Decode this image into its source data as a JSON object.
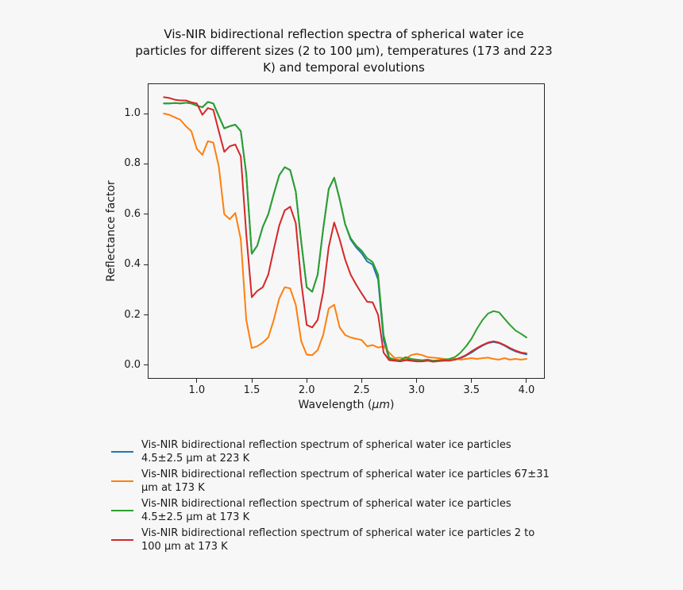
{
  "title": {
    "lines": [
      "Vis-NIR bidirectional reflection spectra of spherical water ice",
      "particles for different sizes (2 to 100 μm), temperatures (173 and 223",
      "K) and temporal evolutions"
    ],
    "full": "Vis-NIR bidirectional reflection spectra of spherical water ice particles for different sizes (2 to 100 μm), temperatures (173 and 223 K) and temporal evolutions"
  },
  "chart_data": {
    "type": "line",
    "title": "Vis-NIR bidirectional reflection spectra of spherical water ice particles for different sizes (2 to 100 μm), temperatures (173 and 223 K) and temporal evolutions",
    "xlabel": "Wavelength (μm)",
    "xlabel_parts": {
      "prefix": "Wavelength (",
      "unit": "μm",
      "suffix": ")"
    },
    "ylabel": "Reflectance factor",
    "xlim": [
      0.553,
      4.167
    ],
    "ylim": [
      -0.054,
      1.12
    ],
    "xticks": [
      "1.0",
      "1.5",
      "2.0",
      "2.5",
      "3.0",
      "3.5",
      "4.0"
    ],
    "yticks": [
      "0.0",
      "0.2",
      "0.4",
      "0.6",
      "0.8",
      "1.0"
    ],
    "grid": false,
    "legend_position": "below-left",
    "x": [
      0.7,
      0.75,
      0.8,
      0.85,
      0.9,
      0.95,
      1.0,
      1.05,
      1.1,
      1.15,
      1.2,
      1.25,
      1.3,
      1.35,
      1.4,
      1.45,
      1.5,
      1.55,
      1.6,
      1.65,
      1.7,
      1.75,
      1.8,
      1.85,
      1.9,
      1.95,
      2.0,
      2.05,
      2.1,
      2.15,
      2.2,
      2.25,
      2.3,
      2.35,
      2.4,
      2.45,
      2.5,
      2.55,
      2.6,
      2.65,
      2.7,
      2.75,
      2.8,
      2.85,
      2.9,
      2.95,
      3.0,
      3.05,
      3.1,
      3.15,
      3.2,
      3.25,
      3.3,
      3.35,
      3.4,
      3.45,
      3.5,
      3.55,
      3.6,
      3.65,
      3.7,
      3.75,
      3.8,
      3.85,
      3.9,
      3.95,
      4.0
    ],
    "series": [
      {
        "name": "Vis-NIR bidirectional reflection spectrum of spherical water ice particles 4.5±2.5 μm at 223 K",
        "color": "#1f77b4",
        "values": [
          1.04,
          1.04,
          1.042,
          1.04,
          1.043,
          1.04,
          1.032,
          1.025,
          1.046,
          1.04,
          0.99,
          0.941,
          0.95,
          0.956,
          0.93,
          0.76,
          0.443,
          0.475,
          0.55,
          0.6,
          0.68,
          0.755,
          0.787,
          0.775,
          0.69,
          0.49,
          0.31,
          0.292,
          0.36,
          0.54,
          0.7,
          0.745,
          0.66,
          0.56,
          0.5,
          0.468,
          0.445,
          0.412,
          0.4,
          0.34,
          0.1,
          0.025,
          0.018,
          0.018,
          0.025,
          0.02,
          0.018,
          0.018,
          0.02,
          0.016,
          0.018,
          0.02,
          0.02,
          0.022,
          0.028,
          0.038,
          0.05,
          0.065,
          0.078,
          0.088,
          0.092,
          0.088,
          0.078,
          0.065,
          0.055,
          0.048,
          0.043
        ]
      },
      {
        "name": "Vis-NIR bidirectional reflection spectrum of spherical water ice particles 67±31 μm at 173 K",
        "color": "#ff7f0e",
        "values": [
          1.0,
          0.995,
          0.985,
          0.975,
          0.95,
          0.93,
          0.86,
          0.836,
          0.89,
          0.885,
          0.79,
          0.6,
          0.58,
          0.605,
          0.5,
          0.18,
          0.068,
          0.075,
          0.09,
          0.11,
          0.18,
          0.265,
          0.31,
          0.305,
          0.24,
          0.095,
          0.042,
          0.04,
          0.06,
          0.12,
          0.225,
          0.24,
          0.15,
          0.12,
          0.11,
          0.105,
          0.1,
          0.075,
          0.08,
          0.07,
          0.075,
          0.05,
          0.028,
          0.03,
          0.025,
          0.04,
          0.045,
          0.04,
          0.032,
          0.03,
          0.028,
          0.025,
          0.022,
          0.025,
          0.022,
          0.025,
          0.028,
          0.025,
          0.028,
          0.03,
          0.025,
          0.022,
          0.028,
          0.022,
          0.025,
          0.022,
          0.025
        ]
      },
      {
        "name": "Vis-NIR bidirectional reflection spectrum of spherical water ice particles 4.5±2.5 μm at 173 K",
        "color": "#2ca02c",
        "values": [
          1.04,
          1.04,
          1.042,
          1.04,
          1.043,
          1.04,
          1.032,
          1.025,
          1.046,
          1.04,
          0.99,
          0.941,
          0.95,
          0.956,
          0.93,
          0.76,
          0.443,
          0.475,
          0.55,
          0.6,
          0.68,
          0.755,
          0.787,
          0.775,
          0.69,
          0.49,
          0.31,
          0.292,
          0.36,
          0.54,
          0.7,
          0.745,
          0.66,
          0.56,
          0.505,
          0.475,
          0.455,
          0.425,
          0.41,
          0.36,
          0.12,
          0.03,
          0.022,
          0.02,
          0.032,
          0.025,
          0.022,
          0.02,
          0.022,
          0.018,
          0.02,
          0.022,
          0.025,
          0.032,
          0.05,
          0.075,
          0.105,
          0.145,
          0.18,
          0.205,
          0.215,
          0.21,
          0.185,
          0.16,
          0.138,
          0.125,
          0.11
        ]
      },
      {
        "name": "Vis-NIR bidirectional reflection spectrum of spherical water ice particles 2 to 100 μm at 173 K",
        "color": "#d62728",
        "values": [
          1.065,
          1.062,
          1.055,
          1.052,
          1.052,
          1.045,
          1.04,
          0.995,
          1.022,
          1.015,
          0.93,
          0.848,
          0.87,
          0.877,
          0.83,
          0.52,
          0.27,
          0.295,
          0.31,
          0.36,
          0.46,
          0.555,
          0.615,
          0.63,
          0.565,
          0.33,
          0.16,
          0.15,
          0.18,
          0.29,
          0.47,
          0.567,
          0.5,
          0.42,
          0.36,
          0.32,
          0.285,
          0.252,
          0.25,
          0.2,
          0.05,
          0.02,
          0.018,
          0.015,
          0.02,
          0.018,
          0.015,
          0.015,
          0.018,
          0.014,
          0.016,
          0.018,
          0.018,
          0.022,
          0.03,
          0.04,
          0.055,
          0.068,
          0.08,
          0.09,
          0.095,
          0.09,
          0.08,
          0.068,
          0.058,
          0.05,
          0.047
        ]
      }
    ]
  },
  "legend": {
    "entries": [
      {
        "color": "#1f77b4",
        "lines": [
          "Vis-NIR bidirectional reflection spectrum of spherical water ice particles",
          "4.5±2.5 μm at 223 K"
        ]
      },
      {
        "color": "#ff7f0e",
        "lines": [
          "Vis-NIR bidirectional reflection spectrum of spherical water ice particles 67±31",
          "μm at 173 K"
        ]
      },
      {
        "color": "#2ca02c",
        "lines": [
          "Vis-NIR bidirectional reflection spectrum of spherical water ice particles",
          "4.5±2.5 μm at 173 K"
        ]
      },
      {
        "color": "#d62728",
        "lines": [
          "Vis-NIR bidirectional reflection spectrum of spherical water ice particles 2 to",
          "100 μm at 173 K"
        ]
      }
    ]
  }
}
